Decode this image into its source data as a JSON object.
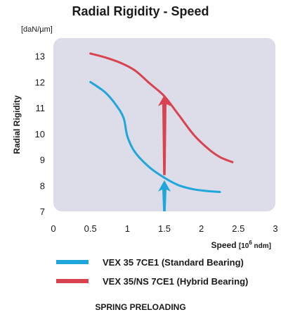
{
  "chart_data": {
    "type": "line",
    "title": "Radial Rigidity - Speed",
    "ylabel": "Radial Rigidity",
    "yunit": "[daN/µm]",
    "xlabel": "Speed",
    "xunit_prefix": "[10",
    "xunit_sup": "6",
    "xunit_suffix": " ndm]",
    "xlim": [
      0,
      3
    ],
    "ylim": [
      7,
      13.7
    ],
    "xticks": [
      0,
      0.5,
      1,
      1.5,
      2,
      2.5,
      3
    ],
    "xtick_labels": [
      "0",
      "0.5",
      "1",
      "1.5",
      "2",
      "2.5",
      "3"
    ],
    "yticks": [
      7,
      8,
      9,
      10,
      11,
      12,
      13
    ],
    "ytick_labels": [
      "7",
      "8",
      "9",
      "10",
      "11",
      "12",
      "13"
    ],
    "grid": false,
    "plot_background": "#dcdde8",
    "series": [
      {
        "name": "VEX 35 7CE1 (Standard Bearing)",
        "color": "#1fa7dc",
        "x": [
          0.5,
          0.7,
          0.85,
          0.95,
          1.0,
          1.1,
          1.3,
          1.5,
          1.7,
          1.9,
          2.1,
          2.25
        ],
        "y": [
          12.0,
          11.6,
          11.1,
          10.6,
          9.9,
          9.3,
          8.7,
          8.3,
          8.0,
          7.85,
          7.78,
          7.75
        ]
      },
      {
        "name": "VEX 35/NS 7CE1 (Hybrid Bearing)",
        "color": "#d9434f",
        "x": [
          0.5,
          0.7,
          0.9,
          1.1,
          1.3,
          1.5,
          1.7,
          1.9,
          2.1,
          2.25,
          2.42
        ],
        "y": [
          13.1,
          12.95,
          12.75,
          12.45,
          11.95,
          11.45,
          10.7,
          9.95,
          9.4,
          9.1,
          8.9
        ]
      }
    ],
    "annotations": [
      {
        "kind": "arrow",
        "color": "#d9434f",
        "x": 1.5,
        "y_from": 8.4,
        "y_to": 11.5
      },
      {
        "kind": "arrow",
        "color": "#1fa7dc",
        "x": 1.5,
        "y_from": 7.0,
        "y_to": 8.2
      }
    ]
  },
  "legend": {
    "items": [
      {
        "label": "VEX 35 7CE1 (Standard Bearing)",
        "color": "#1fa7dc"
      },
      {
        "label": "VEX 35/NS 7CE1 (Hybrid Bearing)",
        "color": "#d9434f"
      }
    ]
  },
  "footer": "SPRING PRELOADING"
}
